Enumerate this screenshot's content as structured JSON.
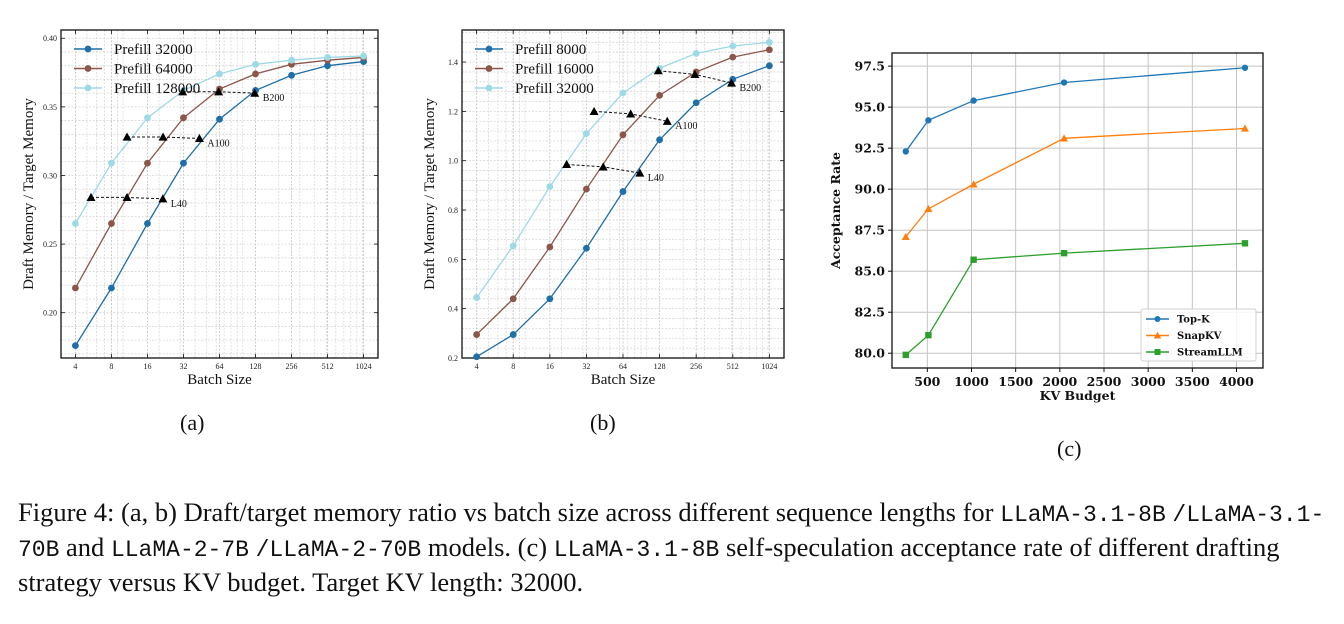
{
  "chart_data": [
    {
      "id": "a",
      "type": "line",
      "panel_label": "(a)",
      "xlabel": "Batch Size",
      "ylabel": "Draft Memory / Target Memory",
      "xscale": "log2",
      "x": [
        4,
        8,
        16,
        32,
        64,
        128,
        256,
        512,
        1024
      ],
      "xticks": [
        "4",
        "8",
        "16",
        "32",
        "64",
        "128",
        "256",
        "512",
        "1024"
      ],
      "ylim": [
        0.167,
        0.406
      ],
      "yticks": [
        0.2,
        0.25,
        0.3,
        0.35,
        0.4
      ],
      "ytick_labels": [
        "0.20",
        "0.25",
        "0.30",
        "0.35",
        "0.40"
      ],
      "grid": true,
      "legend": "top-left",
      "series": [
        {
          "name": "Prefill 32000",
          "color": "#1f6fa8",
          "marker": "circle",
          "values": [
            0.176,
            0.218,
            0.265,
            0.309,
            0.341,
            0.362,
            0.373,
            0.38,
            0.383
          ]
        },
        {
          "name": "Prefill 64000",
          "color": "#8c564b",
          "marker": "circle",
          "values": [
            0.218,
            0.265,
            0.309,
            0.342,
            0.363,
            0.374,
            0.381,
            0.384,
            0.386
          ]
        },
        {
          "name": "Prefill 128000",
          "color": "#9edae5",
          "marker": "circle",
          "values": [
            0.265,
            0.309,
            0.342,
            0.362,
            0.374,
            0.381,
            0.384,
            0.386,
            0.387
          ]
        }
      ],
      "annotations": [
        {
          "label": "L40",
          "points": [
            [
              5.4,
              0.284
            ],
            [
              10.8,
              0.284
            ],
            [
              21.5,
              0.283
            ]
          ]
        },
        {
          "label": "A100",
          "points": [
            [
              10.8,
              0.328
            ],
            [
              21.6,
              0.328
            ],
            [
              43.5,
              0.327
            ]
          ]
        },
        {
          "label": "B200",
          "points": [
            [
              31.5,
              0.361
            ],
            [
              63,
              0.361
            ],
            [
              126,
              0.36
            ]
          ]
        }
      ]
    },
    {
      "id": "b",
      "type": "line",
      "panel_label": "(b)",
      "xlabel": "Batch Size",
      "ylabel": "Draft Memory / Target Memory",
      "xscale": "log2",
      "x": [
        4,
        8,
        16,
        32,
        64,
        128,
        256,
        512,
        1024
      ],
      "xticks": [
        "4",
        "8",
        "16",
        "32",
        "64",
        "128",
        "256",
        "512",
        "1024"
      ],
      "ylim": [
        0.2,
        1.53
      ],
      "yticks": [
        0.2,
        0.4,
        0.6,
        0.8,
        1.0,
        1.2,
        1.4
      ],
      "ytick_labels": [
        "0.2",
        "0.4",
        "0.6",
        "0.8",
        "1.0",
        "1.2",
        "1.4"
      ],
      "grid": true,
      "legend": "top-left",
      "series": [
        {
          "name": "Prefill 8000",
          "color": "#1f6fa8",
          "marker": "circle",
          "values": [
            0.205,
            0.295,
            0.44,
            0.645,
            0.875,
            1.085,
            1.235,
            1.33,
            1.385
          ]
        },
        {
          "name": "Prefill 16000",
          "color": "#8c564b",
          "marker": "circle",
          "values": [
            0.295,
            0.44,
            0.65,
            0.885,
            1.105,
            1.265,
            1.36,
            1.42,
            1.45
          ]
        },
        {
          "name": "Prefill 32000",
          "color": "#9edae5",
          "marker": "circle",
          "values": [
            0.445,
            0.655,
            0.895,
            1.11,
            1.275,
            1.375,
            1.435,
            1.465,
            1.48
          ]
        }
      ],
      "annotations": [
        {
          "label": "L40",
          "points": [
            [
              22,
              0.985
            ],
            [
              44,
              0.975
            ],
            [
              88,
              0.95
            ]
          ]
        },
        {
          "label": "A100",
          "points": [
            [
              37,
              1.2
            ],
            [
              74,
              1.19
            ],
            [
              148,
              1.16
            ]
          ]
        },
        {
          "label": "B200",
          "points": [
            [
              125,
              1.365
            ],
            [
              250,
              1.35
            ],
            [
              500,
              1.315
            ]
          ]
        }
      ]
    },
    {
      "id": "c",
      "type": "line",
      "panel_label": "(c)",
      "xlabel": "KV Budget",
      "ylabel": "Acceptance Rate",
      "x": [
        256,
        512,
        1024,
        2048,
        4096
      ],
      "xlim": [
        100,
        4300
      ],
      "xticks": [
        500,
        1000,
        1500,
        2000,
        2500,
        3000,
        3500,
        4000
      ],
      "xtick_labels": [
        "500",
        "1000",
        "1500",
        "2000",
        "2500",
        "3000",
        "3500",
        "4000"
      ],
      "ylim": [
        79.1,
        98.3
      ],
      "yticks": [
        80.0,
        82.5,
        85.0,
        87.5,
        90.0,
        92.5,
        95.0,
        97.5
      ],
      "ytick_labels": [
        "80.0",
        "82.5",
        "85.0",
        "87.5",
        "90.0",
        "92.5",
        "95.0",
        "97.5"
      ],
      "grid": true,
      "legend": "bottom-right",
      "series": [
        {
          "name": "Top-K",
          "color": "#1f77b4",
          "marker": "circle",
          "values": [
            92.3,
            94.2,
            95.4,
            96.5,
            97.4
          ]
        },
        {
          "name": "SnapKV",
          "color": "#ff7f0e",
          "marker": "triangle",
          "values": [
            87.1,
            88.8,
            90.3,
            93.1,
            93.7
          ]
        },
        {
          "name": "StreamLLM",
          "color": "#2ca02c",
          "marker": "square",
          "values": [
            79.9,
            81.1,
            85.7,
            86.1,
            86.7
          ]
        }
      ]
    }
  ],
  "caption": {
    "prefix": "Figure 4: (a, b) Draft/target memory ratio vs batch size across different sequence lengths for",
    "model1": "LLaMA-3.1-8B",
    "sep1": "/",
    "model2": "LLaMA-3.1-70B",
    "and": "and",
    "model3": "LLaMA-2-7B",
    "sep2": "/",
    "model4": "LLaMA-2-70B",
    "mid": "models. (c)",
    "model5": "LLaMA-3.1-8B",
    "suffix": "self-speculation acceptance rate of different drafting strategy versus KV budget. Target KV length: 32000."
  }
}
